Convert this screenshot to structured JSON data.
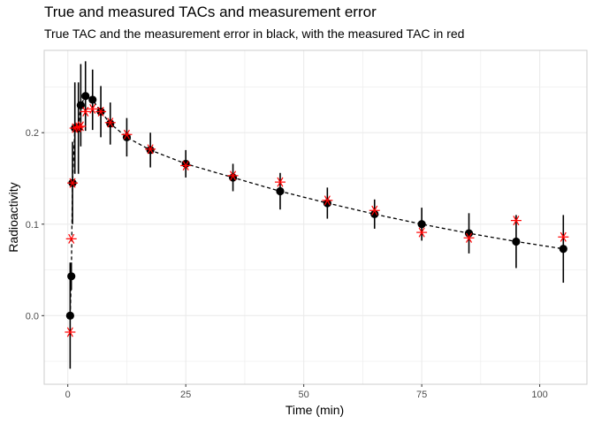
{
  "chart_data": {
    "type": "scatter",
    "title": "True and measured TACs and measurement error",
    "subtitle": "True TAC and the measurement error in black, with the measured TAC in red",
    "xlabel": "Time (min)",
    "ylabel": "Radioactivity",
    "xlim": [
      -5,
      110
    ],
    "ylim": [
      -0.075,
      0.29
    ],
    "x_ticks": [
      0,
      25,
      50,
      75,
      100
    ],
    "y_ticks": [
      0.0,
      0.1,
      0.2
    ],
    "y_tick_labels": [
      "0.0",
      "0.1",
      "0.2"
    ],
    "grid": true,
    "legend": "none",
    "colors": {
      "true": "#000000",
      "measured": "#ff0000",
      "grid": "#ebebeb",
      "panel_border": "#cccccc"
    },
    "series": [
      {
        "x": [
          0.5,
          0.75,
          1.0,
          1.5,
          2.25,
          2.75,
          3.75,
          5.25,
          7,
          9,
          12.5,
          17.5,
          25,
          35,
          45,
          55,
          65,
          75,
          85,
          95,
          105
        ],
        "true": [
          0.0,
          0.043,
          0.145,
          0.205,
          0.205,
          0.23,
          0.24,
          0.236,
          0.223,
          0.21,
          0.195,
          0.181,
          0.166,
          0.151,
          0.136,
          0.123,
          0.111,
          0.1,
          0.09,
          0.081,
          0.073
        ],
        "error": [
          0.058,
          0.015,
          0.045,
          0.05,
          0.05,
          0.045,
          0.038,
          0.033,
          0.028,
          0.023,
          0.021,
          0.019,
          0.015,
          0.015,
          0.02,
          0.017,
          0.016,
          0.018,
          0.022,
          0.029,
          0.037
        ],
        "measured": [
          -0.018,
          0.084,
          0.145,
          0.205,
          0.206,
          0.207,
          0.223,
          0.226,
          0.223,
          0.211,
          0.198,
          0.182,
          0.164,
          0.153,
          0.146,
          0.126,
          0.115,
          0.091,
          0.085,
          0.104,
          0.086
        ]
      }
    ]
  }
}
